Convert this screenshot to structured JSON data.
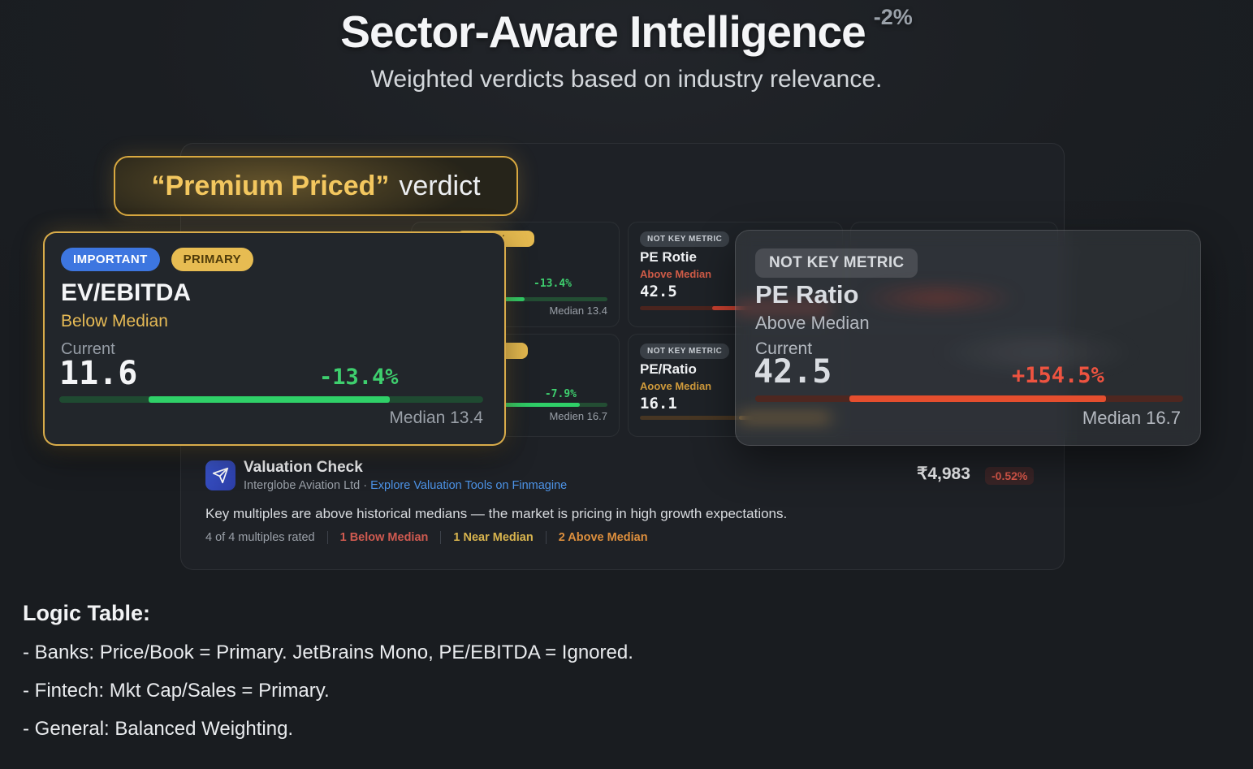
{
  "header": {
    "title": "Sector-Aware Intelligence",
    "title_superscript": "-2%",
    "subtitle": "Weighted verdicts based on industry relevance."
  },
  "verdict": {
    "highlight": "“Premium Priced”",
    "rest": "verdict"
  },
  "focus_card": {
    "badge_important": "IMPORTANT",
    "badge_primary": "PRIMARY",
    "title": "EV/EBITDA",
    "status": "Below Median",
    "current_label": "Current",
    "current_value": "11.6",
    "change": "-13.4%",
    "median_label": "Median 13.4",
    "bar": {
      "start": 21,
      "end": 78,
      "fill": "#2fd068",
      "track": "#1f4a31"
    }
  },
  "grid": {
    "growth_top": {
      "badge_fragment": "PRIMARY",
      "change": "-13.4%",
      "median_label": "Median 13.4",
      "bar": {
        "start": 0,
        "end": 55,
        "fill": "#2fcf68",
        "track": "#234d33"
      }
    },
    "growth_bottom": {
      "badge_fragment": "PRIMARY",
      "change": "-7.9%",
      "median_label": "Medien 16.7",
      "bar": {
        "start": 0,
        "end": 85,
        "fill": "#2fcf68",
        "track": "#234d33"
      }
    },
    "pe_small": {
      "chip": "NOT KEY METRIC",
      "title": "PE Rotie",
      "status": "Above Median",
      "status_color": "#cf5b47",
      "value": "42.5",
      "bar": {
        "start": 38,
        "end": 100,
        "fill": "#c8402f",
        "track": "#4a241e"
      }
    },
    "pe_ratio_small": {
      "chip": "NOT KEY METRIC",
      "title": "PE/Ratio",
      "status": "Aoove Median",
      "status_color": "#cf9a3b",
      "value": "16.1",
      "bar": {
        "start": 52,
        "end": 100,
        "fill": "#e8a33c",
        "track": "#473623"
      }
    }
  },
  "overlay_card": {
    "chip": "NOT KEY METRIC",
    "title": "PE Ratio",
    "status": "Above Median",
    "current_label": "Current",
    "current_value": "42.5",
    "change": "+154.5%",
    "median_label": "Median 16.7",
    "bar": {
      "start": 22,
      "end": 82,
      "fill": "#e54e2e",
      "track": "#4e2720"
    }
  },
  "valuation": {
    "title": "Valuation Check",
    "company": "Interglobe Aviation Ltd",
    "separator": "·",
    "link": "Explore Valuation Tools on Finmagine",
    "price": "₹4,983",
    "price_change": "-0.52%",
    "summary": "Key multiples are above historical medians — the market is pricing in high growth expectations.",
    "stats": {
      "rated": "4 of 4 multiples rated",
      "below": "1 Below Median",
      "near": "1 Near Median",
      "above": "2 Above Median"
    }
  },
  "logic_table": {
    "heading": "Logic Table:",
    "rows": [
      "- Banks: Price/Book = Primary. JetBrains Mono, PE/EBITDA = Ignored.",
      "- Fintech: Mkt Cap/Sales = Primary.",
      "- General: Balanced Weighting."
    ]
  },
  "colors": {
    "accent_gold": "#e7bc52",
    "accent_blue": "#3d76e0",
    "positive_green": "#2fd068",
    "negative_red": "#e54e2e",
    "link_blue": "#4d94e8"
  }
}
